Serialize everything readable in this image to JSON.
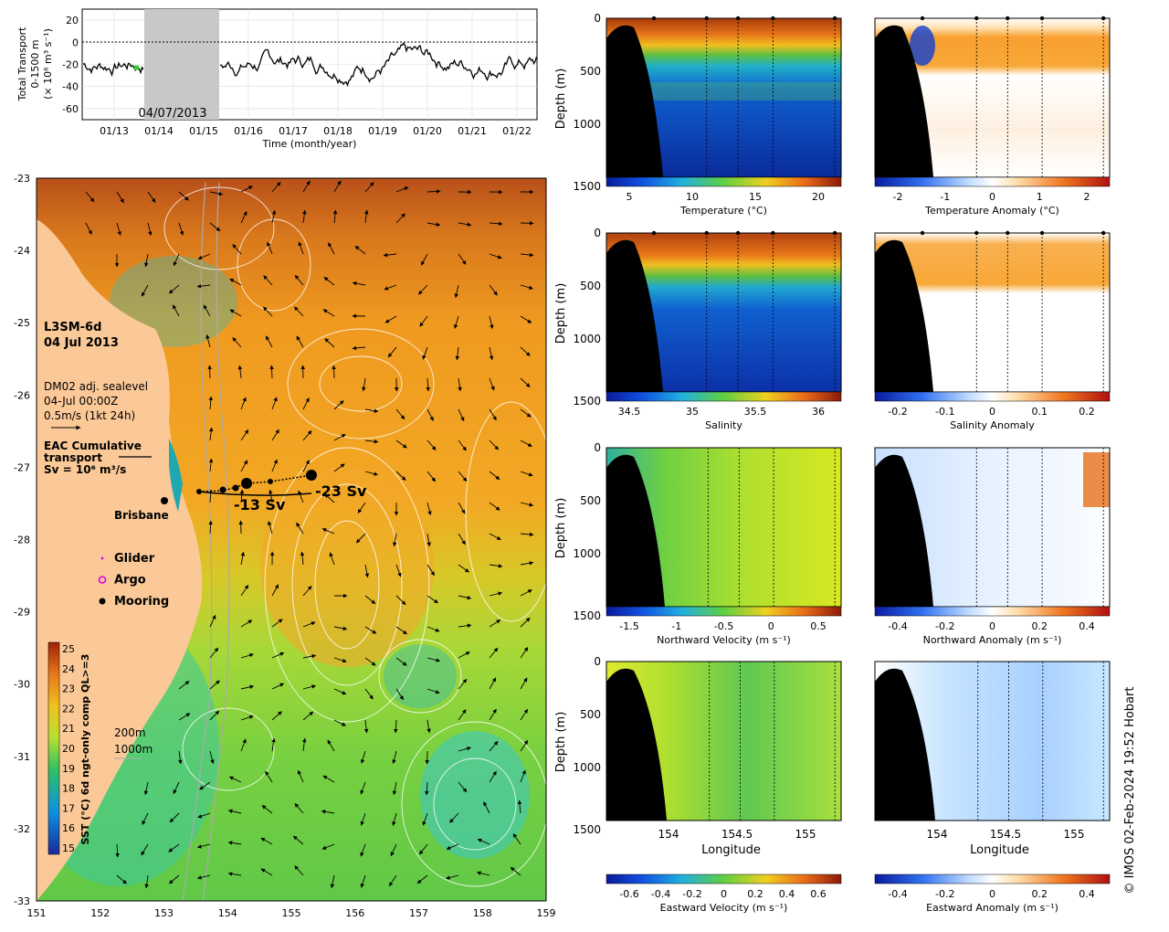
{
  "copyright": "© IMOS 02-Feb-2024 19:52 Hobart",
  "timeseries": {
    "type": "line",
    "ylabel_lines": [
      "Total Transport",
      "0-1500 m",
      "(× 10⁶ m³ s⁻¹)"
    ],
    "xlabel": "Time (month/year)",
    "yticks": [
      20,
      0,
      -20,
      -40,
      -60
    ],
    "ylim": [
      -70,
      30
    ],
    "xticks": [
      "01/13",
      "01/14",
      "01/15",
      "01/16",
      "01/17",
      "01/18",
      "01/19",
      "01/20",
      "01/21",
      "01/22"
    ],
    "gap_label": "04/07/2013",
    "marker_value": -23
  },
  "map": {
    "title_lines": [
      "L3SM-6d",
      "04 Jul 2013"
    ],
    "info_lines": [
      "DM02 adj. sealevel",
      "04-Jul 00:00Z",
      "0.5m/s (1kt 24h)"
    ],
    "transport_lines": [
      "EAC Cumulative",
      "transport",
      "Sv = 10⁶ m³/s"
    ],
    "city": "Brisbane",
    "transport_labels": [
      "-13 Sv",
      "-23 Sv"
    ],
    "legend": [
      {
        "label": "Glider",
        "color": "#e000e0",
        "kind": "dot"
      },
      {
        "label": "Argo",
        "color": "#e000e0",
        "kind": "ring"
      },
      {
        "label": "Mooring",
        "color": "#000000",
        "kind": "dot"
      }
    ],
    "isobaths": [
      "200m",
      "1000m"
    ],
    "colorbar_label": "SST (°C) 6d ngt-only comp QL>=3",
    "colorbar_ticks": [
      25,
      24,
      23,
      22,
      21,
      20,
      19,
      18,
      17,
      16,
      15
    ],
    "xticks": [
      151,
      152,
      153,
      154,
      155,
      156,
      157,
      158,
      159
    ],
    "yticks": [
      -23,
      -24,
      -25,
      -26,
      -27,
      -28,
      -29,
      -30,
      -31,
      -32,
      -33
    ]
  },
  "sections": {
    "depth_label": "Depth (m)",
    "depth_ticks": [
      0,
      500,
      1000,
      1500
    ],
    "lon_ticks": [
      "154",
      "154.5",
      "155"
    ],
    "lon_label": "Longitude",
    "rows": [
      {
        "left_label": "Temperature (°C)",
        "left_ticks": [
          "5",
          "10",
          "15",
          "20"
        ],
        "right_label": "Temperature Anomaly (°C)",
        "right_ticks": [
          "-2",
          "-1",
          "0",
          "1",
          "2"
        ]
      },
      {
        "left_label": "Salinity",
        "left_ticks": [
          "34.5",
          "35",
          "35.5",
          "36"
        ],
        "right_label": "Salinity Anomaly",
        "right_ticks": [
          "-0.2",
          "-0.1",
          "0",
          "0.1",
          "0.2"
        ]
      },
      {
        "left_label": "Northward Velocity (m s⁻¹)",
        "left_ticks": [
          "-1.5",
          "-1",
          "-0.5",
          "0",
          "0.5"
        ],
        "right_label": "Northward Anomaly (m s⁻¹)",
        "right_ticks": [
          "-0.4",
          "-0.2",
          "0",
          "0.2",
          "0.4"
        ]
      },
      {
        "left_label": "Eastward Velocity (m s⁻¹)",
        "left_ticks": [
          "-0.6",
          "-0.4",
          "-0.2",
          "0",
          "0.2",
          "0.4",
          "0.6"
        ],
        "right_label": "Eastward Anomaly (m s⁻¹)",
        "right_ticks": [
          "-0.4",
          "-0.2",
          "0",
          "0.2",
          "0.4"
        ]
      }
    ]
  }
}
